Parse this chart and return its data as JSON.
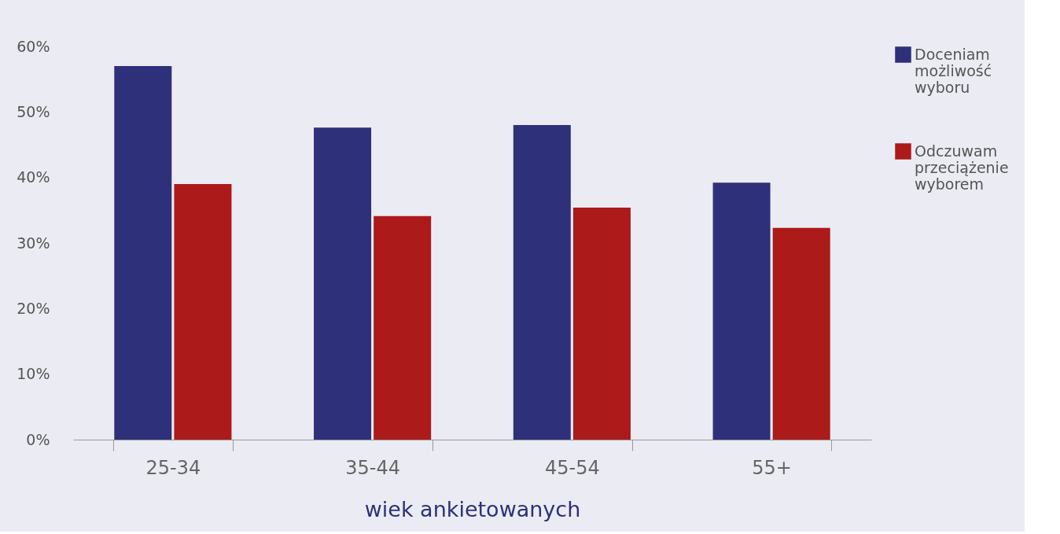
{
  "chart_data": {
    "type": "bar",
    "xlabel": "wiek ankietowanych",
    "categories": [
      "25-34",
      "35-44",
      "45-54",
      "55+"
    ],
    "series": [
      {
        "name": "Doceniam możliwość wyboru",
        "color": "#2e3079",
        "values": [
          57,
          47.6,
          48,
          39.2
        ]
      },
      {
        "name": "Odczuwam przeciążenie wyborem",
        "color": "#ac1a1a",
        "values": [
          39,
          34.1,
          35.4,
          32.3
        ]
      }
    ],
    "ylim": [
      0,
      60
    ],
    "yticks": [
      {
        "value": 0,
        "label": "0%"
      },
      {
        "value": 10,
        "label": "10%"
      },
      {
        "value": 20,
        "label": "20%"
      },
      {
        "value": 30,
        "label": "30%"
      },
      {
        "value": 40,
        "label": "40%"
      },
      {
        "value": 50,
        "label": "50%"
      },
      {
        "value": 60,
        "label": "60%"
      }
    ],
    "grid": false,
    "legend": "right"
  }
}
